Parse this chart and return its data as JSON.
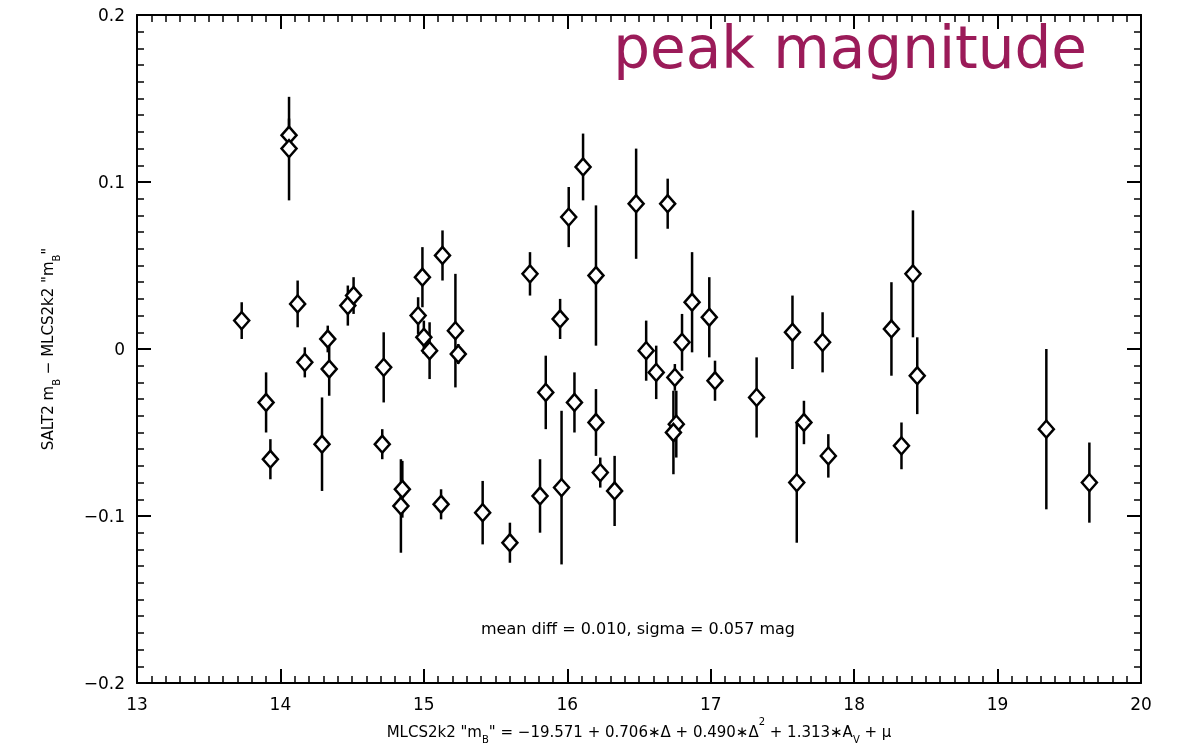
{
  "chart_data": {
    "type": "scatter",
    "title": "peak magnitude",
    "xlabel": "MLCS2k2 \"m$_{B}$\" = −19.571 + 0.706∗Δ + 0.490∗Δ$^{2}$ + 1.313∗A$_{V}$ + μ",
    "ylabel": "SALT2 m$_{B}$ − MLCS2k2 \"m$_{B}$\"",
    "annotations": [
      "mean diff = 0.010, sigma = 0.057 mag"
    ],
    "x": [
      13.73,
      13.9,
      13.93,
      14.06,
      14.06,
      14.12,
      14.17,
      14.33,
      14.34,
      14.29,
      14.47,
      14.51,
      14.72,
      14.71,
      14.85,
      14.84,
      15.12,
      15.41,
      14.96,
      14.99,
      15.0,
      15.04,
      15.13,
      15.22,
      15.24,
      15.6,
      15.74,
      15.95,
      16.01,
      16.11,
      16.2,
      15.85,
      16.05,
      16.2,
      15.81,
      15.96,
      16.23,
      16.33,
      16.48,
      16.7,
      16.55,
      16.62,
      16.75,
      16.8,
      16.87,
      16.99,
      17.03,
      17.32,
      16.76,
      16.74,
      17.57,
      17.78,
      18.26,
      18.41,
      18.44,
      17.65,
      17.6,
      17.82,
      18.33,
      19.34,
      19.64
    ],
    "series": [
      {
        "color": "#000000",
        "values": [
          0.017,
          -0.032,
          -0.066,
          0.128,
          0.12,
          0.027,
          -0.008,
          0.006,
          -0.012,
          -0.057,
          0.026,
          0.032,
          -0.011,
          -0.057,
          -0.084,
          -0.094,
          -0.093,
          -0.098,
          0.02,
          0.043,
          0.007,
          -0.001,
          0.056,
          0.011,
          -0.003,
          -0.116,
          0.045,
          0.018,
          0.079,
          0.109,
          0.044,
          -0.026,
          -0.032,
          -0.044,
          -0.088,
          -0.083,
          -0.074,
          -0.085,
          0.087,
          0.087,
          -0.001,
          -0.014,
          -0.017,
          0.004,
          0.028,
          0.019,
          -0.019,
          -0.029,
          -0.045,
          -0.05,
          0.01,
          0.004,
          0.012,
          0.045,
          -0.016,
          -0.044,
          -0.08,
          -0.064,
          -0.058,
          -0.048,
          -0.08
        ],
        "errors": [
          0.011,
          0.018,
          0.012,
          0.01,
          0.031,
          0.014,
          0.009,
          0.008,
          0.016,
          0.028,
          0.012,
          0.011,
          0.021,
          0.009,
          0.017,
          0.028,
          0.009,
          0.019,
          0.011,
          0.018,
          0.01,
          0.017,
          0.015,
          0.034,
          0.006,
          0.012,
          0.013,
          0.012,
          0.018,
          0.02,
          0.042,
          0.022,
          0.018,
          0.02,
          0.022,
          0.046,
          0.009,
          0.021,
          0.033,
          0.015,
          0.018,
          0.016,
          0.008,
          0.017,
          0.03,
          0.024,
          0.012,
          0.024,
          0.02,
          0.025,
          0.022,
          0.018,
          0.028,
          0.038,
          0.023,
          0.013,
          0.036,
          0.013,
          0.014,
          0.048,
          0.024
        ]
      }
    ],
    "xlim": [
      13,
      20
    ],
    "ylim": [
      -0.2,
      0.2
    ],
    "xticks": [
      13,
      14,
      15,
      16,
      17,
      18,
      19,
      20
    ],
    "yticks": [
      -0.2,
      -0.1,
      0.0,
      0.1,
      0.2
    ],
    "marker": "diamond"
  }
}
